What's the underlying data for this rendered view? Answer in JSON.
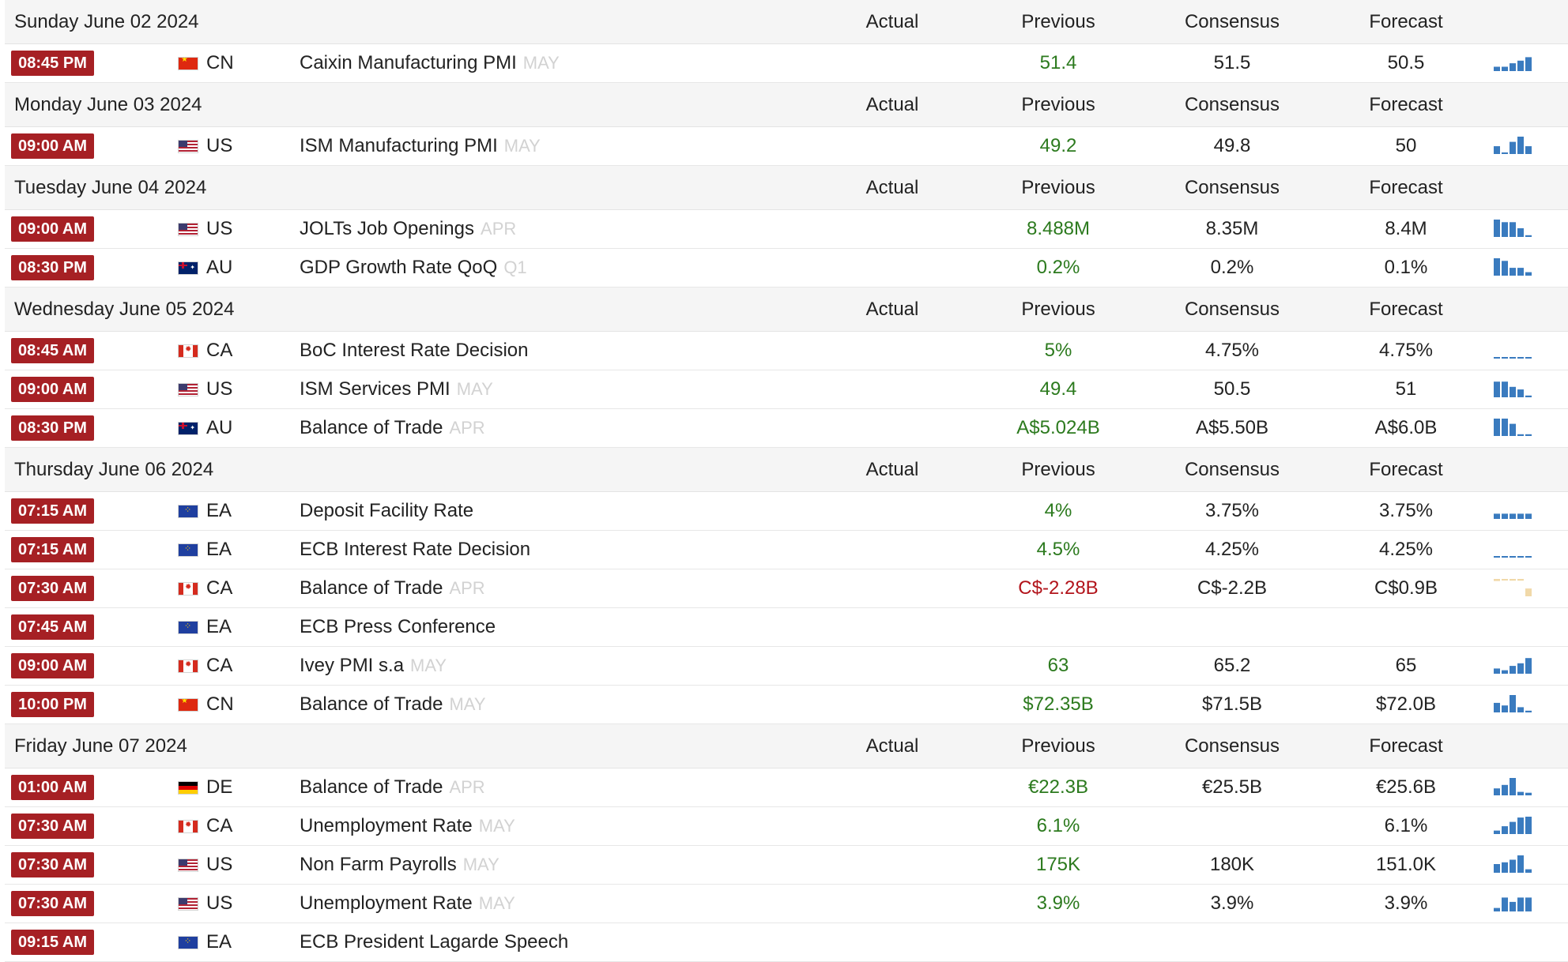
{
  "headers": {
    "actual": "Actual",
    "previous": "Previous",
    "consensus": "Consensus",
    "forecast": "Forecast"
  },
  "groups": [
    {
      "date": "Sunday June 02 2024",
      "events": [
        {
          "time": "08:45 PM",
          "country": "CN",
          "flag": "flag-cn-icon",
          "name": "Caixin Manufacturing PMI",
          "ref": "MAY",
          "actual": "",
          "previous": "51.4",
          "prev_dir": "pos",
          "consensus": "51.5",
          "forecast": "50.5",
          "spark": {
            "color": "#3a7bbf",
            "values": [
              0.25,
              0.25,
              0.45,
              0.6,
              0.8
            ]
          }
        }
      ]
    },
    {
      "date": "Monday June 03 2024",
      "events": [
        {
          "time": "09:00 AM",
          "country": "US",
          "flag": "flag-us-icon",
          "name": "ISM Manufacturing PMI",
          "ref": "MAY",
          "actual": "",
          "previous": "49.2",
          "prev_dir": "pos",
          "consensus": "49.8",
          "forecast": "50",
          "spark": {
            "color": "#3a7bbf",
            "values": [
              0.45,
              0,
              0.7,
              1,
              0.45
            ]
          }
        }
      ]
    },
    {
      "date": "Tuesday June 04 2024",
      "events": [
        {
          "time": "09:00 AM",
          "country": "US",
          "flag": "flag-us-icon",
          "name": "JOLTs Job Openings",
          "ref": "APR",
          "actual": "",
          "previous": "8.488M",
          "prev_dir": "pos",
          "consensus": "8.35M",
          "forecast": "8.4M",
          "spark": {
            "color": "#3a7bbf",
            "values": [
              1,
              0.85,
              0.85,
              0.5,
              0.1
            ]
          }
        },
        {
          "time": "08:30 PM",
          "country": "AU",
          "flag": "flag-au-icon",
          "name": "GDP Growth Rate QoQ",
          "ref": "Q1",
          "actual": "",
          "previous": "0.2%",
          "prev_dir": "pos",
          "consensus": "0.2%",
          "forecast": "0.1%",
          "spark": {
            "color": "#3a7bbf",
            "values": [
              1,
              0.85,
              0.45,
              0.45,
              0.2
            ]
          }
        }
      ]
    },
    {
      "date": "Wednesday June 05 2024",
      "events": [
        {
          "time": "08:45 AM",
          "country": "CA",
          "flag": "flag-ca-icon",
          "name": "BoC Interest Rate Decision",
          "ref": "",
          "actual": "",
          "previous": "5%",
          "prev_dir": "pos",
          "consensus": "4.75%",
          "forecast": "4.75%",
          "spark": {
            "color": "#3a7bbf",
            "values": [
              0.08,
              0.08,
              0.08,
              0.08,
              0.08
            ]
          }
        },
        {
          "time": "09:00 AM",
          "country": "US",
          "flag": "flag-us-icon",
          "name": "ISM Services PMI",
          "ref": "MAY",
          "actual": "",
          "previous": "49.4",
          "prev_dir": "pos",
          "consensus": "50.5",
          "forecast": "51",
          "spark": {
            "color": "#3a7bbf",
            "values": [
              0.9,
              0.9,
              0.6,
              0.45,
              0.1
            ]
          }
        },
        {
          "time": "08:30 PM",
          "country": "AU",
          "flag": "flag-au-icon",
          "name": "Balance of Trade",
          "ref": "APR",
          "actual": "",
          "previous": "A$5.024B",
          "prev_dir": "pos",
          "consensus": "A$5.50B",
          "forecast": "A$6.0B",
          "spark": {
            "color": "#3a7bbf",
            "values": [
              1,
              1,
              0.7,
              0.1,
              0.1
            ]
          }
        }
      ]
    },
    {
      "date": "Thursday June 06 2024",
      "events": [
        {
          "time": "07:15 AM",
          "country": "EA",
          "flag": "flag-ea-icon",
          "name": "Deposit Facility Rate",
          "ref": "",
          "actual": "",
          "previous": "4%",
          "prev_dir": "pos",
          "consensus": "3.75%",
          "forecast": "3.75%",
          "spark": {
            "color": "#3a7bbf",
            "values": [
              0.3,
              0.3,
              0.3,
              0.3,
              0.3
            ]
          }
        },
        {
          "time": "07:15 AM",
          "country": "EA",
          "flag": "flag-ea-icon",
          "name": "ECB Interest Rate Decision",
          "ref": "",
          "actual": "",
          "previous": "4.5%",
          "prev_dir": "pos",
          "consensus": "4.25%",
          "forecast": "4.25%",
          "spark": {
            "color": "#3a7bbf",
            "values": [
              0.08,
              0.08,
              0.08,
              0.08,
              0.08
            ]
          }
        },
        {
          "time": "07:30 AM",
          "country": "CA",
          "flag": "flag-ca-icon",
          "name": "Balance of Trade",
          "ref": "APR",
          "actual": "",
          "previous": "C$-2.28B",
          "prev_dir": "neg",
          "consensus": "C$-2.2B",
          "forecast": "C$0.9B",
          "spark": {
            "color": "#f1d9a9",
            "values": [
              0.12,
              0.08,
              0.1,
              0.1,
              0.45
            ],
            "style": "neg"
          }
        },
        {
          "time": "07:45 AM",
          "country": "EA",
          "flag": "flag-ea-icon",
          "name": "ECB Press Conference",
          "ref": "",
          "actual": "",
          "previous": "",
          "prev_dir": "pos",
          "consensus": "",
          "forecast": "",
          "spark": null
        },
        {
          "time": "09:00 AM",
          "country": "CA",
          "flag": "flag-ca-icon",
          "name": "Ivey PMI s.a",
          "ref": "MAY",
          "actual": "",
          "previous": "63",
          "prev_dir": "pos",
          "consensus": "65.2",
          "forecast": "65",
          "spark": {
            "color": "#3a7bbf",
            "values": [
              0.3,
              0.2,
              0.45,
              0.6,
              0.9
            ]
          }
        },
        {
          "time": "10:00 PM",
          "country": "CN",
          "flag": "flag-cn-icon",
          "name": "Balance of Trade",
          "ref": "MAY",
          "actual": "",
          "previous": "$72.35B",
          "prev_dir": "pos",
          "consensus": "$71.5B",
          "forecast": "$72.0B",
          "spark": {
            "color": "#3a7bbf",
            "values": [
              0.55,
              0.4,
              1,
              0.3,
              0.1
            ]
          }
        }
      ]
    },
    {
      "date": "Friday June 07 2024",
      "events": [
        {
          "time": "01:00 AM",
          "country": "DE",
          "flag": "flag-de-icon",
          "name": "Balance of Trade",
          "ref": "APR",
          "actual": "",
          "previous": "€22.3B",
          "prev_dir": "pos",
          "consensus": "€25.5B",
          "forecast": "€25.6B",
          "spark": {
            "color": "#3a7bbf",
            "values": [
              0.4,
              0.6,
              1,
              0.2,
              0.15
            ]
          }
        },
        {
          "time": "07:30 AM",
          "country": "CA",
          "flag": "flag-ca-icon",
          "name": "Unemployment Rate",
          "ref": "MAY",
          "actual": "",
          "previous": "6.1%",
          "prev_dir": "pos",
          "consensus": "",
          "forecast": "6.1%",
          "spark": {
            "color": "#3a7bbf",
            "values": [
              0.2,
              0.45,
              0.7,
              0.95,
              1
            ]
          }
        },
        {
          "time": "07:30 AM",
          "country": "US",
          "flag": "flag-us-icon",
          "name": "Non Farm Payrolls",
          "ref": "MAY",
          "actual": "",
          "previous": "175K",
          "prev_dir": "pos",
          "consensus": "180K",
          "forecast": "151.0K",
          "spark": {
            "color": "#3a7bbf",
            "values": [
              0.5,
              0.6,
              0.75,
              1,
              0.2
            ]
          }
        },
        {
          "time": "07:30 AM",
          "country": "US",
          "flag": "flag-us-icon",
          "name": "Unemployment Rate",
          "ref": "MAY",
          "actual": "",
          "previous": "3.9%",
          "prev_dir": "pos",
          "consensus": "3.9%",
          "forecast": "3.9%",
          "spark": {
            "color": "#3a7bbf",
            "values": [
              0.2,
              0.8,
              0.55,
              0.8,
              0.8
            ]
          }
        },
        {
          "time": "09:15 AM",
          "country": "EA",
          "flag": "flag-ea-icon",
          "name": "ECB President Lagarde Speech",
          "ref": "",
          "actual": "",
          "previous": "",
          "prev_dir": "pos",
          "consensus": "",
          "forecast": "",
          "spark": null
        }
      ]
    }
  ]
}
